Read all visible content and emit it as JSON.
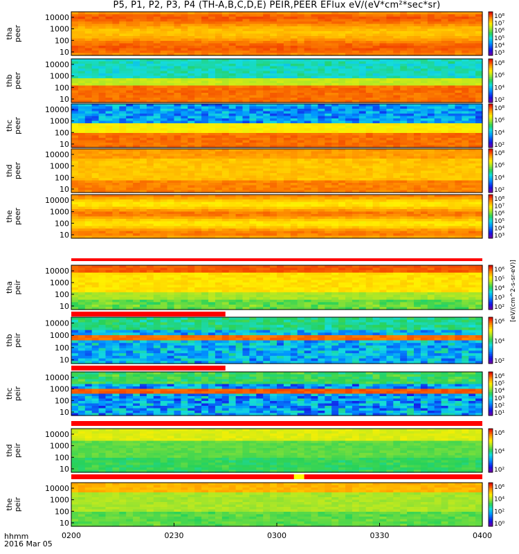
{
  "title": "P5, P1, P2, P3, P4 (TH-A,B,C,D,E) PEIR,PEER EFlux eV/(eV*cm²*sec*sr)",
  "footer": {
    "time_label": "hhmm",
    "date_label": "2016 Mar 05"
  },
  "colors": {
    "axis": "#000000",
    "background": "#ffffff"
  },
  "chart_data": {
    "type": "heatmap",
    "title": "P5, P1, P2, P3, P4 (TH-A,B,C,D,E) PEIR,PEER EFlux eV/(eV*cm²*sec*sr)",
    "x_ticks": [
      "0200",
      "0230",
      "0300",
      "0330",
      "0400"
    ],
    "x_range": [
      "0200",
      "0400"
    ],
    "y_scale": "log",
    "colorbar_scale": "log",
    "colorbar_label": "[eV/(cm^2-s-sr-eV)]",
    "panels": [
      {
        "probe": "tha",
        "product": "peer",
        "y_ticks": [
          "10000",
          "1000",
          "100",
          "10"
        ],
        "ylim": [
          5,
          30000
        ],
        "cbar_ticks": [
          "10⁸",
          "10⁷",
          "10⁶",
          "10⁵",
          "10⁴",
          "10³"
        ],
        "cbar_range": [
          1000,
          100000000
        ]
      },
      {
        "probe": "thb",
        "product": "peer",
        "y_ticks": [
          "10000",
          "1000",
          "100",
          "10"
        ],
        "ylim": [
          5,
          30000
        ],
        "cbar_ticks": [
          "10⁸",
          "10⁶",
          "10⁴",
          "10²"
        ],
        "cbar_range": [
          100,
          100000000
        ]
      },
      {
        "probe": "thc",
        "product": "peer",
        "y_ticks": [
          "10000",
          "1000",
          "100",
          "10"
        ],
        "ylim": [
          5,
          30000
        ],
        "cbar_ticks": [
          "10⁸",
          "10⁶",
          "10⁴",
          "10²"
        ],
        "cbar_range": [
          100,
          100000000
        ]
      },
      {
        "probe": "thd",
        "product": "peer",
        "y_ticks": [
          "10000",
          "1000",
          "100",
          "10"
        ],
        "ylim": [
          5,
          30000
        ],
        "cbar_ticks": [
          "10⁸",
          "10⁶",
          "10⁴",
          "10²"
        ],
        "cbar_range": [
          100,
          100000000
        ]
      },
      {
        "probe": "the",
        "product": "peer",
        "y_ticks": [
          "10000",
          "1000",
          "100",
          "10"
        ],
        "ylim": [
          5,
          30000
        ],
        "cbar_ticks": [
          "10⁸",
          "10⁷",
          "10⁶",
          "10⁵",
          "10⁴",
          "10³"
        ],
        "cbar_range": [
          1000,
          100000000
        ]
      },
      {
        "probe": "tha",
        "product": "peir",
        "y_ticks": [
          "10000",
          "1000",
          "100",
          "10"
        ],
        "ylim": [
          5,
          30000
        ],
        "cbar_ticks": [
          "10⁶",
          "10⁵",
          "10⁴",
          "10³",
          "10²"
        ],
        "cbar_range": [
          100,
          1000000
        ]
      },
      {
        "probe": "thb",
        "product": "peir",
        "y_ticks": [
          "10000",
          "1000",
          "100",
          "10"
        ],
        "ylim": [
          5,
          30000
        ],
        "cbar_ticks": [
          "10⁶",
          "10⁴",
          "10²"
        ],
        "cbar_range": [
          100,
          1000000
        ]
      },
      {
        "probe": "thc",
        "product": "peir",
        "y_ticks": [
          "10000",
          "1000",
          "100",
          "10"
        ],
        "ylim": [
          5,
          30000
        ],
        "cbar_ticks": [
          "10⁶",
          "10⁵",
          "10⁴",
          "10³",
          "10²",
          "10¹"
        ],
        "cbar_range": [
          10,
          1000000
        ]
      },
      {
        "probe": "thd",
        "product": "peir",
        "y_ticks": [
          "10000",
          "1000",
          "100",
          "10"
        ],
        "ylim": [
          5,
          30000
        ],
        "cbar_ticks": [
          "10⁶",
          "10⁴",
          "10²"
        ],
        "cbar_range": [
          100,
          1000000
        ]
      },
      {
        "probe": "the",
        "product": "peir",
        "y_ticks": [
          "10000",
          "1000",
          "100",
          "10"
        ],
        "ylim": [
          5,
          30000
        ],
        "cbar_ticks": [
          "10⁶",
          "10⁴",
          "10²",
          "10⁰"
        ],
        "cbar_range": [
          1,
          1000000
        ]
      }
    ],
    "mode_bars": [
      {
        "above_panel": "tha peir",
        "segments": [
          [
            "0200",
            "0400",
            "red"
          ]
        ]
      },
      {
        "above_panel": "thb peir",
        "segments": [
          [
            "0200",
            "0245",
            "red"
          ]
        ]
      },
      {
        "above_panel": "thc peir",
        "segments": [
          [
            "0200",
            "0245",
            "red"
          ]
        ]
      },
      {
        "above_panel": "thd peir",
        "segments": [
          [
            "0200",
            "0400",
            "red"
          ]
        ]
      },
      {
        "above_panel": "the peir",
        "segments": [
          [
            "0200",
            "0400",
            "red"
          ],
          [
            "0305",
            "0308",
            "yellow"
          ]
        ]
      }
    ]
  }
}
